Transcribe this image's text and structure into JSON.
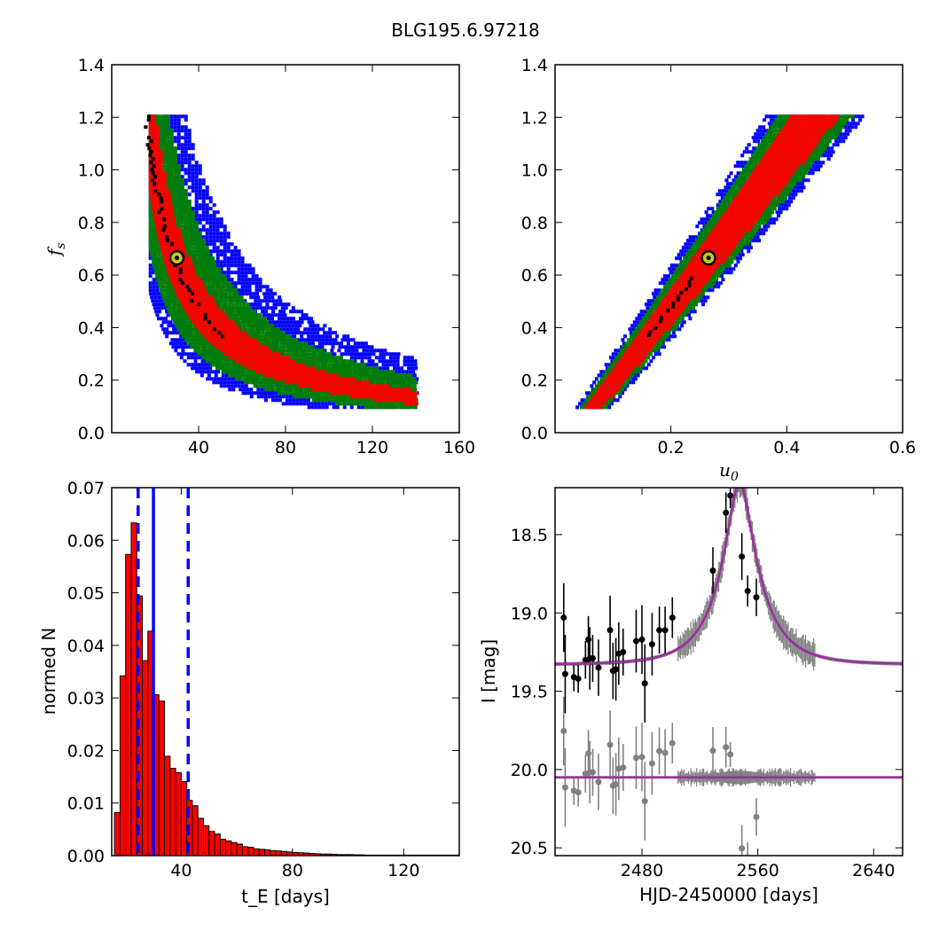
{
  "figure": {
    "title": "BLG195.6.97218"
  },
  "colors": {
    "black": "#000000",
    "red": "#ff0000",
    "green": "#008000",
    "blue": "#0000ff",
    "gray": "#808080",
    "magenta": "#9b2ea3",
    "marker": "#c8c81e"
  },
  "chart_data": [
    {
      "type": "heatmap",
      "panel": "tE-fs",
      "xlim": [
        0,
        160
      ],
      "ylim": [
        0,
        1.4
      ],
      "xticks": [
        "40",
        "80",
        "120",
        "160"
      ],
      "yticks": [
        "0.0",
        "0.2",
        "0.4",
        "0.6",
        "0.8",
        "1.0",
        "1.2",
        "1.4"
      ],
      "xlabel": "",
      "ylabel": "f_s",
      "ylabel_base": "f",
      "ylabel_sub": "s",
      "best_fit": {
        "x": 30,
        "y": 0.665
      },
      "levels": [
        "black",
        "red",
        "green",
        "blue"
      ]
    },
    {
      "type": "heatmap",
      "panel": "u0-fs",
      "xlim": [
        0,
        0.6
      ],
      "ylim": [
        0,
        1.4
      ],
      "xticks": [
        "0.2",
        "0.4",
        "0.6"
      ],
      "yticks": [
        "0.0",
        "0.2",
        "0.4",
        "0.6",
        "0.8",
        "1.0",
        "1.2",
        "1.4"
      ],
      "xlabel": "u_0",
      "xlabel_base": "u",
      "xlabel_sub": "0",
      "ylabel": "",
      "best_fit": {
        "x": 0.265,
        "y": 0.665
      },
      "levels": [
        "black",
        "red",
        "green",
        "blue"
      ]
    },
    {
      "type": "bar",
      "panel": "tE-histogram",
      "xlim": [
        15,
        140
      ],
      "ylim": [
        0,
        0.07
      ],
      "xticks": [
        "40",
        "80",
        "120"
      ],
      "yticks": [
        "0.00",
        "0.01",
        "0.02",
        "0.03",
        "0.04",
        "0.05",
        "0.06",
        "0.07"
      ],
      "xlabel": "t_E  [days]",
      "xlabel_base": "t",
      "xlabel_sub": "E",
      "xlabel_rest": " [days]",
      "ylabel": "normed N",
      "bin_start": 16,
      "bin_width": 2,
      "values": [
        0.0082,
        0.0342,
        0.0573,
        0.0633,
        0.0494,
        0.0371,
        0.0427,
        0.0306,
        0.0294,
        0.0189,
        0.0166,
        0.0158,
        0.0141,
        0.0105,
        0.0095,
        0.0071,
        0.0057,
        0.0046,
        0.0041,
        0.0031,
        0.0028,
        0.0025,
        0.0022,
        0.0017,
        0.0016,
        0.0013,
        0.0012,
        0.0011,
        0.00095,
        0.0009,
        0.0008,
        0.0007,
        0.0006,
        0.00055,
        0.0005,
        0.0004,
        0.00035,
        0.0003,
        0.0003,
        0.00025,
        0.0002,
        0.0002,
        0.0002,
        0.00015,
        0.00015,
        0.0001,
        0.0001,
        0.0001,
        0.0001,
        0.0001,
        0.0001,
        0.0001,
        0.0001,
        0.0001,
        0.0001,
        0.0001,
        0.0001,
        0.0001,
        0.0001,
        0.0001,
        0.0001,
        0.0001
      ],
      "median": 30,
      "interval": [
        24.5,
        42.5
      ]
    },
    {
      "type": "scatter",
      "panel": "lightcurve",
      "xlim": [
        2420,
        2660
      ],
      "ylim": [
        20.55,
        18.2
      ],
      "xticks": [
        "2480",
        "2560",
        "2640"
      ],
      "yticks": [
        "18.5",
        "19.0",
        "19.5",
        "20.0",
        "20.5"
      ],
      "xlabel": "HJD-2450000 [days]",
      "ylabel": "I [mag]",
      "model": {
        "t0": 2547.5,
        "tE": 30,
        "u0": 0.265,
        "fs": 0.665,
        "baseline": 19.33,
        "residual_baseline": 20.05
      },
      "points": [
        {
          "t": 2426,
          "m": 19.03,
          "e": 0.22
        },
        {
          "t": 2427,
          "m": 19.39,
          "e": 0.25
        },
        {
          "t": 2433,
          "m": 19.41,
          "e": 0.09
        },
        {
          "t": 2436,
          "m": 19.42,
          "e": 0.09
        },
        {
          "t": 2441,
          "m": 19.3,
          "e": 0.12
        },
        {
          "t": 2443,
          "m": 19.17,
          "e": 0.15
        },
        {
          "t": 2444,
          "m": 19.29,
          "e": 0.2
        },
        {
          "t": 2446,
          "m": 19.29,
          "e": 0.15
        },
        {
          "t": 2450,
          "m": 19.35,
          "e": 0.18
        },
        {
          "t": 2458,
          "m": 19.11,
          "e": 0.22
        },
        {
          "t": 2460,
          "m": 19.37,
          "e": 0.18
        },
        {
          "t": 2462,
          "m": 19.36,
          "e": 0.2
        },
        {
          "t": 2464,
          "m": 19.26,
          "e": 0.2
        },
        {
          "t": 2467,
          "m": 19.25,
          "e": 0.15
        },
        {
          "t": 2476,
          "m": 19.18,
          "e": 0.2
        },
        {
          "t": 2480,
          "m": 19.17,
          "e": 0.22
        },
        {
          "t": 2482,
          "m": 19.45,
          "e": 0.25
        },
        {
          "t": 2487,
          "m": 19.2,
          "e": 0.2
        },
        {
          "t": 2492,
          "m": 19.11,
          "e": 0.15
        },
        {
          "t": 2496,
          "m": 19.11,
          "e": 0.15
        },
        {
          "t": 2501,
          "m": 19.03,
          "e": 0.13
        },
        {
          "t": 2529,
          "m": 18.73,
          "e": 0.15
        },
        {
          "t": 2538,
          "m": 18.36,
          "e": 0.13
        },
        {
          "t": 2541,
          "m": 18.25,
          "e": 0.08
        },
        {
          "t": 2549,
          "m": 18.64,
          "e": 0.15
        },
        {
          "t": 2553,
          "m": 18.86,
          "e": 0.1
        },
        {
          "t": 2559,
          "m": 18.9,
          "e": 0.12
        }
      ]
    }
  ]
}
